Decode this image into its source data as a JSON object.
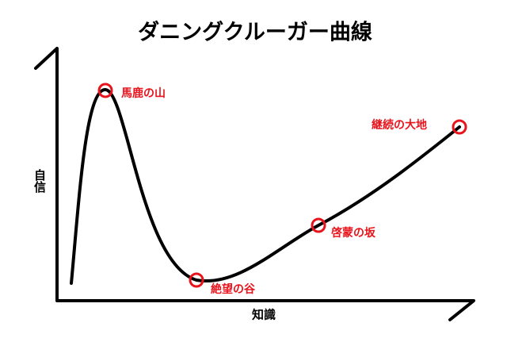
{
  "title": "ダニングクルーガー曲線",
  "axes": {
    "y_label": "自信",
    "x_label": "知識"
  },
  "points": [
    {
      "label": "馬鹿の山"
    },
    {
      "label": "絶望の谷"
    },
    {
      "label": "啓蒙の坂"
    },
    {
      "label": "継続の大地"
    }
  ]
}
